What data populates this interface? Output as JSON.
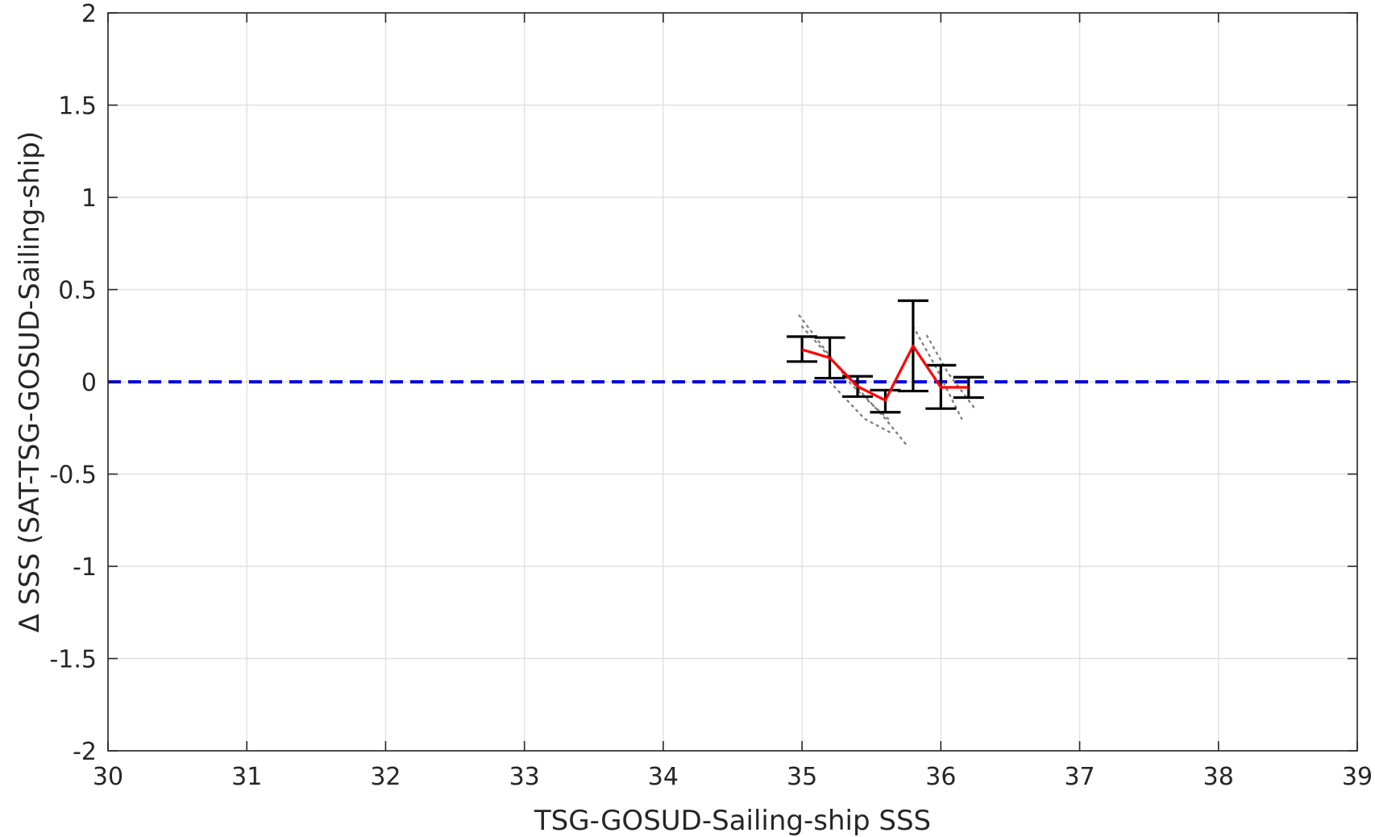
{
  "chart_data": {
    "type": "line",
    "title": "",
    "xlabel": "TSG-GOSUD-Sailing-ship SSS",
    "ylabel": "Δ SSS (SAT-TSG-GOSUD-Sailing-ship)",
    "xlim": [
      30,
      39
    ],
    "ylim": [
      -2,
      2
    ],
    "xticks": [
      30,
      31,
      32,
      33,
      34,
      35,
      36,
      37,
      38,
      39
    ],
    "yticks": [
      -2,
      -1.5,
      -1,
      -0.5,
      0,
      0.5,
      1,
      1.5,
      2
    ],
    "xtick_labels": [
      "30",
      "31",
      "32",
      "33",
      "34",
      "35",
      "36",
      "37",
      "38",
      "39"
    ],
    "ytick_labels": [
      "-2",
      "-1.5",
      "-1",
      "-0.5",
      "0",
      "0.5",
      "1",
      "1.5",
      "2"
    ],
    "grid": true,
    "legend": "none",
    "reference_line": {
      "y": 0,
      "style": "dashed",
      "color": "#0000e0"
    },
    "series": [
      {
        "style": "line-with-errorbars",
        "color": "#ff0000",
        "errorbar_color": "#000000",
        "x": [
          35.0,
          35.2,
          35.4,
          35.6,
          35.8,
          36.0,
          36.2
        ],
        "y": [
          0.175,
          0.13,
          -0.025,
          -0.1,
          0.195,
          -0.03,
          -0.03
        ],
        "err_low": [
          0.11,
          0.02,
          -0.08,
          -0.165,
          -0.05,
          -0.145,
          -0.085
        ],
        "err_high": [
          0.245,
          0.24,
          0.03,
          -0.045,
          0.44,
          0.09,
          0.025
        ]
      },
      {
        "style": "dotted",
        "color": "#808080",
        "x": [
          34.98,
          35.35,
          35.5,
          35.62
        ],
        "y": [
          0.36,
          -0.01,
          -0.12,
          -0.2
        ]
      },
      {
        "style": "dotted",
        "color": "#808080",
        "x": [
          35.0,
          35.3,
          35.6,
          35.75
        ],
        "y": [
          0.3,
          0.05,
          -0.2,
          -0.34
        ]
      },
      {
        "style": "dotted",
        "color": "#808080",
        "x": [
          35.2,
          35.45,
          35.65
        ],
        "y": [
          0.0,
          -0.2,
          -0.28
        ]
      },
      {
        "style": "dotted",
        "color": "#808080",
        "x": [
          35.8,
          35.95,
          36.15
        ],
        "y": [
          0.3,
          0.1,
          -0.2
        ]
      },
      {
        "style": "dotted",
        "color": "#808080",
        "x": [
          35.9,
          36.05,
          36.25
        ],
        "y": [
          0.25,
          0.05,
          -0.15
        ]
      }
    ]
  }
}
